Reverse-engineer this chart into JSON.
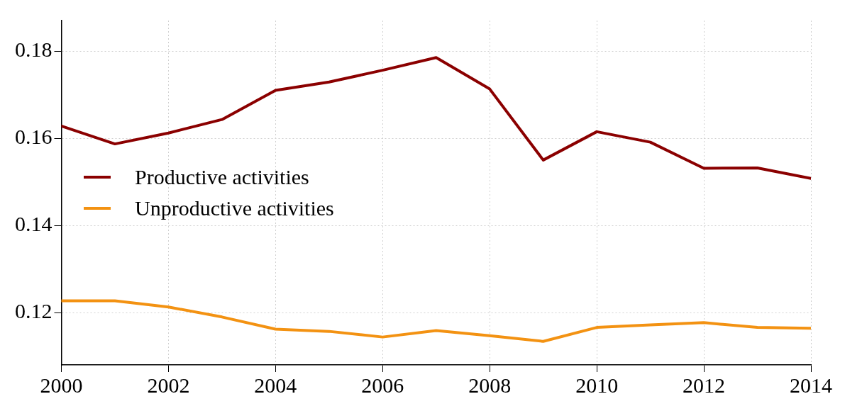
{
  "chart_data": {
    "type": "line",
    "x": [
      2000,
      2001,
      2002,
      2003,
      2004,
      2005,
      2006,
      2007,
      2008,
      2009,
      2010,
      2011,
      2012,
      2013,
      2014
    ],
    "series": [
      {
        "name": "Productive activities",
        "color": "#8b0000",
        "values": [
          0.1628,
          0.1587,
          0.1612,
          0.1643,
          0.171,
          0.1729,
          0.1756,
          0.1785,
          0.1713,
          0.155,
          0.1615,
          0.1591,
          0.1531,
          0.1532,
          0.1508
        ]
      },
      {
        "name": "Unproductive activities",
        "color": "#f39212",
        "values": [
          0.1227,
          0.1227,
          0.1213,
          0.119,
          0.1162,
          0.1157,
          0.1144,
          0.1159,
          0.1147,
          0.1134,
          0.1166,
          0.1172,
          0.1177,
          0.1166,
          0.1164
        ]
      }
    ],
    "xlim": [
      2000,
      2014
    ],
    "xticks": [
      2000,
      2002,
      2004,
      2006,
      2008,
      2010,
      2012,
      2014
    ],
    "ylim": [
      0.108,
      0.187
    ],
    "yticks": [
      0.12,
      0.14,
      0.16,
      0.18
    ],
    "grid": true,
    "legend": "left",
    "marker": "none",
    "line_style": "solid"
  }
}
